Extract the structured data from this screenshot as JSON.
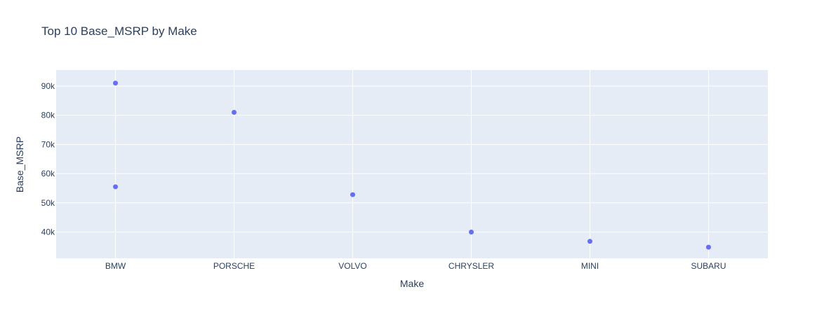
{
  "chart_data": {
    "type": "scatter",
    "title": "Top 10 Base_MSRP by Make",
    "xlabel": "Make",
    "ylabel": "Base_MSRP",
    "categories": [
      "BMW",
      "PORSCHE",
      "VOLVO",
      "CHRYSLER",
      "MINI",
      "SUBARU"
    ],
    "points": [
      {
        "x": "BMW",
        "y": 91000
      },
      {
        "x": "BMW",
        "y": 55500
      },
      {
        "x": "PORSCHE",
        "y": 81000
      },
      {
        "x": "VOLVO",
        "y": 52800
      },
      {
        "x": "CHRYSLER",
        "y": 40000
      },
      {
        "x": "MINI",
        "y": 36800
      },
      {
        "x": "SUBARU",
        "y": 34800
      }
    ],
    "ylim": [
      31000,
      95500
    ],
    "y_ticks": [
      40000,
      50000,
      60000,
      70000,
      80000,
      90000
    ],
    "y_tick_labels": [
      "40k",
      "50k",
      "60k",
      "70k",
      "80k",
      "90k"
    ],
    "grid": true,
    "colors": {
      "plot_background": "#e5ecf6",
      "grid": "#ffffff",
      "marker": "#636efa",
      "text": "#2a3f5f"
    }
  }
}
